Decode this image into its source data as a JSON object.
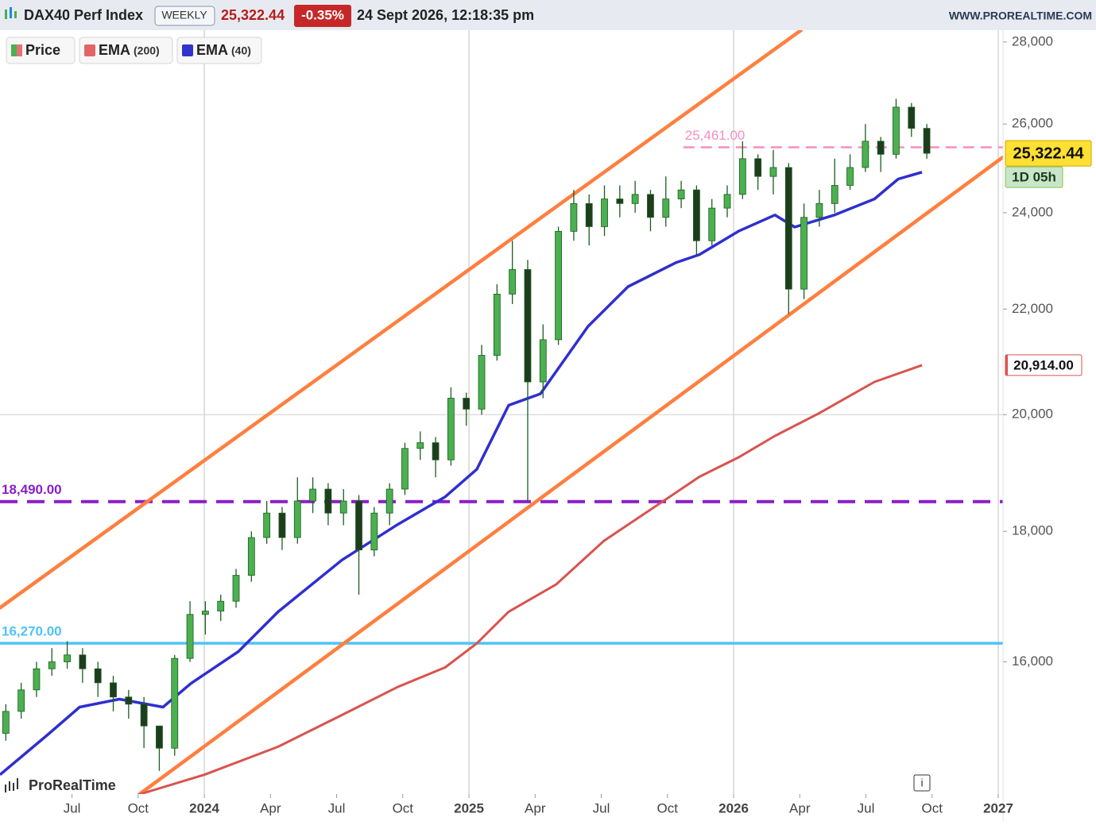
{
  "chart_data": {
    "type": "candlestick",
    "title": "DAX40 Perf Index",
    "timeframe": "WEEKLY",
    "price": {
      "value": 25322.44,
      "label": "25,322.44"
    },
    "change": {
      "value": -0.35,
      "label": "-0.35%"
    },
    "datetime": "24 Sept 2026, 12:18:35 pm",
    "source": "WWW.PROREALTIME.COM",
    "watermark": "ProRealTime",
    "info_icon": "i",
    "countdown": "1D 05h",
    "log_scale": true,
    "xgrid": "years",
    "xlim": [
      2023.228,
      2027.018
    ],
    "ylim": [
      14200,
      28300
    ],
    "xticks": [
      {
        "value": 2023.5,
        "label": "Jul"
      },
      {
        "value": 2023.75,
        "label": "Oct"
      },
      {
        "value": 2024,
        "label": "2024"
      },
      {
        "value": 2024.25,
        "label": "Apr"
      },
      {
        "value": 2024.5,
        "label": "Jul"
      },
      {
        "value": 2024.75,
        "label": "Oct"
      },
      {
        "value": 2025,
        "label": "2025"
      },
      {
        "value": 2025.25,
        "label": "Apr"
      },
      {
        "value": 2025.5,
        "label": "Jul"
      },
      {
        "value": 2025.75,
        "label": "Oct"
      },
      {
        "value": 2026,
        "label": "2026"
      },
      {
        "value": 2026.25,
        "label": "Apr"
      },
      {
        "value": 2026.5,
        "label": "Jul"
      },
      {
        "value": 2026.75,
        "label": "Oct"
      },
      {
        "value": 2027,
        "label": "2027"
      }
    ],
    "yticks": [
      {
        "value": 16000,
        "label": "16,000"
      },
      {
        "value": 18000,
        "label": "18,000"
      },
      {
        "value": 20000,
        "label": "20,000"
      },
      {
        "value": 22000,
        "label": "22,000"
      },
      {
        "value": 24000,
        "label": "24,000"
      },
      {
        "value": 26000,
        "label": "26,000"
      },
      {
        "value": 28000,
        "label": "28,000"
      }
    ],
    "candles": {
      "name": "Price",
      "up_color": "#4caf50",
      "down_color": "#1e3d1e",
      "edge_color": "#1b5e20",
      "x": [
        2023.25,
        2023.308,
        2023.366,
        2023.424,
        2023.482,
        2023.54,
        2023.598,
        2023.656,
        2023.714,
        2023.772,
        2023.83,
        2023.888,
        2023.946,
        2024.004,
        2024.062,
        2024.12,
        2024.178,
        2024.236,
        2024.294,
        2024.352,
        2024.41,
        2024.468,
        2024.526,
        2024.584,
        2024.642,
        2024.7,
        2024.758,
        2024.816,
        2024.874,
        2024.932,
        2024.99,
        2025.048,
        2025.106,
        2025.164,
        2025.222,
        2025.28,
        2025.338,
        2025.396,
        2025.454,
        2025.512,
        2025.57,
        2025.628,
        2025.686,
        2025.744,
        2025.802,
        2025.86,
        2025.918,
        2025.976,
        2026.034,
        2026.092,
        2026.15,
        2026.208,
        2026.266,
        2026.324,
        2026.382,
        2026.44,
        2026.498,
        2026.556,
        2026.614,
        2026.672,
        2026.73
      ],
      "open": [
        15000,
        15300,
        15600,
        15900,
        16000,
        16100,
        15900,
        15700,
        15500,
        15400,
        15100,
        14800,
        16050,
        16700,
        16750,
        16900,
        17300,
        17900,
        18300,
        17900,
        18500,
        18700,
        18300,
        18500,
        17700,
        18300,
        18700,
        19400,
        19500,
        19200,
        20300,
        20100,
        21100,
        22300,
        22800,
        20600,
        21400,
        23600,
        24200,
        23700,
        24300,
        24200,
        24400,
        23900,
        24300,
        24500,
        23400,
        24100,
        24400,
        25200,
        24800,
        25000,
        22400,
        23900,
        24200,
        24600,
        25000,
        25600,
        25300,
        26400,
        25900
      ],
      "high": [
        15400,
        15700,
        16000,
        16200,
        16300,
        16200,
        16000,
        15800,
        15600,
        15500,
        15100,
        16100,
        16900,
        16900,
        17000,
        17400,
        18000,
        18500,
        18400,
        18900,
        18900,
        18800,
        18700,
        18600,
        18400,
        18800,
        19500,
        19700,
        19600,
        20500,
        20400,
        21300,
        22500,
        23400,
        23000,
        21700,
        23700,
        24500,
        24400,
        24600,
        24600,
        24700,
        24500,
        24800,
        24700,
        24600,
        24300,
        24600,
        25600,
        25300,
        25400,
        25100,
        24200,
        24500,
        25200,
        25300,
        26000,
        25700,
        26600,
        26500,
        26000
      ],
      "low": [
        14900,
        15200,
        15500,
        15800,
        15900,
        15700,
        15500,
        15300,
        15200,
        14800,
        14500,
        14700,
        16000,
        16400,
        16600,
        16800,
        17200,
        17800,
        17700,
        17800,
        18300,
        18100,
        18100,
        17000,
        17600,
        18100,
        18600,
        19200,
        18900,
        19100,
        19800,
        20000,
        21000,
        22100,
        18500,
        20300,
        21300,
        23400,
        23300,
        23500,
        23900,
        24000,
        23600,
        23700,
        24100,
        23100,
        23300,
        23900,
        24300,
        24500,
        24400,
        21900,
        22200,
        23700,
        24000,
        24500,
        24900,
        24900,
        25200,
        25700,
        25200
      ],
      "close": [
        15300,
        15600,
        15900,
        16000,
        16100,
        15900,
        15700,
        15500,
        15400,
        15100,
        14800,
        16050,
        16700,
        16750,
        16900,
        17300,
        17900,
        18300,
        17900,
        18500,
        18700,
        18300,
        18500,
        17700,
        18300,
        18700,
        19400,
        19500,
        19200,
        20300,
        20100,
        21100,
        22300,
        22800,
        20600,
        21400,
        23600,
        24200,
        23700,
        24300,
        24200,
        24400,
        23900,
        24300,
        24500,
        23400,
        24100,
        24400,
        25200,
        24800,
        25000,
        22400,
        23900,
        24200,
        24600,
        25000,
        25600,
        25300,
        26400,
        25900,
        25322.44
      ]
    },
    "series": [
      {
        "name": "EMA",
        "period_label": "(200)",
        "color": "#d9534f",
        "legend_color": "#e06666",
        "x": [
          2023.754,
          2024.0,
          2024.279,
          2024.52,
          2024.73,
          2024.91,
          2025.03,
          2025.15,
          2025.33,
          2025.511,
          2025.691,
          2025.871,
          2026.021,
          2026.156,
          2026.321,
          2026.532,
          2026.712
        ],
        "values": [
          14195,
          14450,
          14820,
          15250,
          15640,
          15920,
          16270,
          16740,
          17160,
          17850,
          18370,
          18910,
          19250,
          19620,
          20020,
          20600,
          20914
        ]
      },
      {
        "name": "EMA",
        "period_label": "(40)",
        "color": "#2f2fd0",
        "legend_color": "#3333cc",
        "x": [
          2023.228,
          2023.408,
          2023.529,
          2023.679,
          2023.844,
          2023.949,
          2024.129,
          2024.279,
          2024.52,
          2024.73,
          2024.91,
          2025.03,
          2025.15,
          2025.27,
          2025.45,
          2025.601,
          2025.781,
          2025.871,
          2026.021,
          2026.156,
          2026.231,
          2026.381,
          2026.532,
          2026.622,
          2026.712
        ],
        "values": [
          14450,
          14980,
          15360,
          15470,
          15360,
          15690,
          16150,
          16740,
          17540,
          18110,
          18570,
          19040,
          20170,
          20380,
          21660,
          22450,
          22940,
          23110,
          23610,
          23950,
          23690,
          23950,
          24300,
          24740,
          24896
        ]
      }
    ],
    "price_tags": [
      {
        "value": 25322.44,
        "label": "25,322.44",
        "color": "#ffe033"
      },
      {
        "value": 20914,
        "label": "20,914.00",
        "color": "#ffffff",
        "edge": "#d9534f"
      }
    ],
    "levels": [
      {
        "value": 25461,
        "label": "25,461.00",
        "color": "#f48fc0",
        "style": "dashed",
        "from": 2025.81
      },
      {
        "value": 18490,
        "label": "18,490.00",
        "color": "#8a1fc7",
        "style": "dashed-thick"
      },
      {
        "value": 16270,
        "label": "16,270.00",
        "color": "#4fc3f7",
        "style": "solid"
      },
      {
        "value": 20000,
        "color": "#d9d9d9",
        "style": "thin"
      }
    ],
    "trendlines": [
      {
        "x": [
          2023.228,
          2026.255
        ],
        "y": [
          16800,
          28300
        ],
        "color": "#ff7f3f"
      },
      {
        "x": [
          2023.754,
          2027.018
        ],
        "y": [
          14195,
          25237
        ],
        "color": "#ff7f3f"
      }
    ]
  }
}
